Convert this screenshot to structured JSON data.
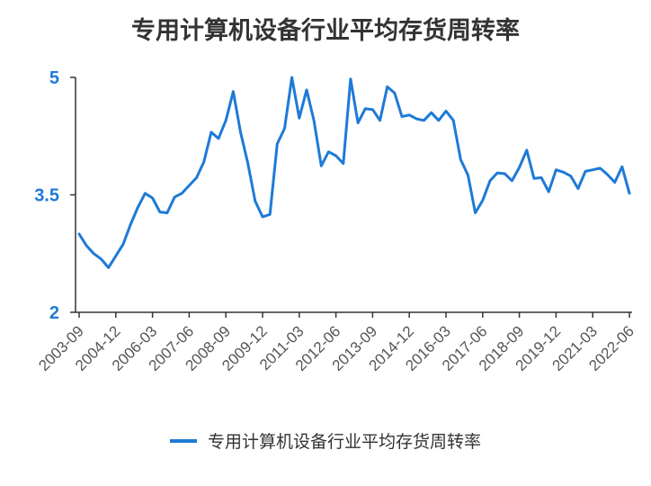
{
  "chart_data": {
    "type": "line",
    "title": "专用计算机设备行业平均存货周转率",
    "xlabel": "",
    "ylabel": "",
    "ylim": [
      2,
      5
    ],
    "yticks": [
      "2",
      "3.5",
      "5"
    ],
    "xticks": [
      "2003-09",
      "2004-12",
      "2006-03",
      "2007-06",
      "2008-09",
      "2009-12",
      "2011-03",
      "2012-06",
      "2013-09",
      "2014-12",
      "2016-03",
      "2017-06",
      "2018-09",
      "2019-12",
      "2021-03",
      "2022-06"
    ],
    "legend_position": "bottom",
    "grid": false,
    "color": "#1e7ad6",
    "series": [
      {
        "name": "专用计算机设备行业平均存货周转率",
        "x": [
          "2003-09",
          "2003-12",
          "2004-03",
          "2004-06",
          "2004-09",
          "2004-12",
          "2005-03",
          "2005-06",
          "2005-09",
          "2005-12",
          "2006-03",
          "2006-06",
          "2006-09",
          "2006-12",
          "2007-03",
          "2007-06",
          "2007-09",
          "2007-12",
          "2008-03",
          "2008-06",
          "2008-09",
          "2008-12",
          "2009-03",
          "2009-06",
          "2009-09",
          "2009-12",
          "2010-03",
          "2010-06",
          "2010-09",
          "2010-12",
          "2011-03",
          "2011-06",
          "2011-09",
          "2011-12",
          "2012-03",
          "2012-06",
          "2012-09",
          "2012-12",
          "2013-03",
          "2013-06",
          "2013-09",
          "2013-12",
          "2014-03",
          "2014-06",
          "2014-09",
          "2014-12",
          "2015-03",
          "2015-06",
          "2015-09",
          "2015-12",
          "2016-03",
          "2016-06",
          "2016-09",
          "2016-12",
          "2017-03",
          "2017-06",
          "2017-09",
          "2017-12",
          "2018-03",
          "2018-06",
          "2018-09",
          "2018-12",
          "2019-03",
          "2019-06",
          "2019-09",
          "2019-12",
          "2020-03",
          "2020-06",
          "2020-09",
          "2020-12",
          "2021-03",
          "2021-06",
          "2021-09",
          "2021-12",
          "2022-03",
          "2022-06"
        ],
        "values": [
          3.0,
          2.85,
          2.75,
          2.68,
          2.57,
          2.72,
          2.87,
          3.12,
          3.34,
          3.52,
          3.46,
          3.28,
          3.27,
          3.47,
          3.52,
          3.62,
          3.72,
          3.92,
          4.3,
          4.22,
          4.45,
          4.82,
          4.3,
          3.9,
          3.42,
          3.22,
          3.25,
          4.15,
          4.35,
          5.0,
          4.48,
          4.84,
          4.45,
          3.87,
          4.05,
          4.0,
          3.9,
          4.98,
          4.42,
          4.6,
          4.59,
          4.45,
          4.88,
          4.8,
          4.5,
          4.52,
          4.47,
          4.45,
          4.55,
          4.45,
          4.57,
          4.45,
          3.95,
          3.75,
          3.27,
          3.43,
          3.68,
          3.78,
          3.77,
          3.68,
          3.85,
          4.07,
          3.71,
          3.72,
          3.54,
          3.82,
          3.79,
          3.74,
          3.58,
          3.8,
          3.82,
          3.84,
          3.76,
          3.66,
          3.86,
          3.52
        ]
      }
    ]
  }
}
